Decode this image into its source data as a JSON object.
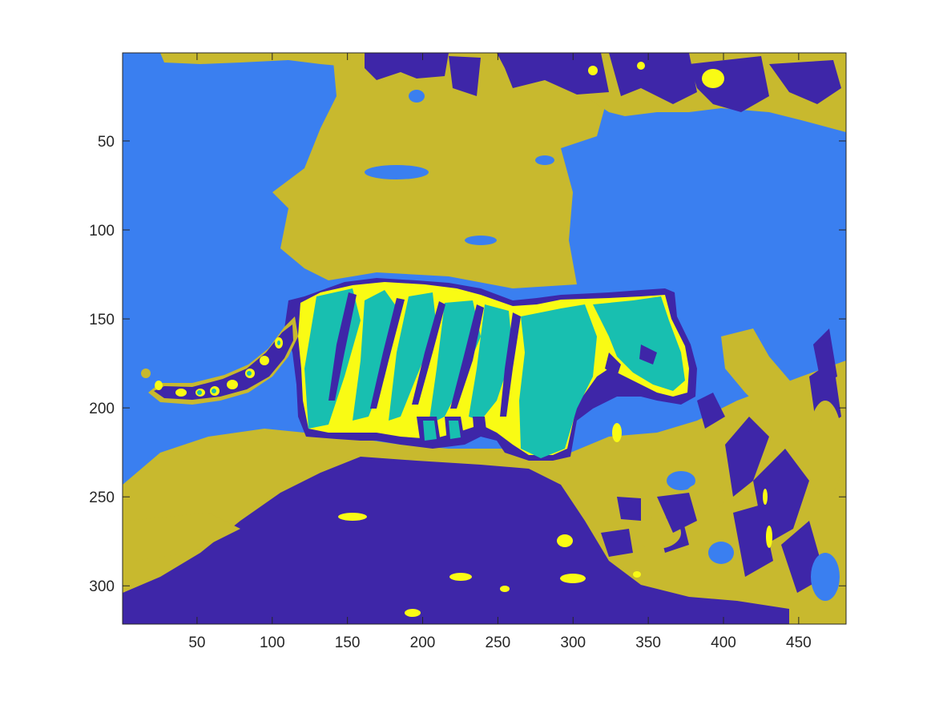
{
  "chart_data": {
    "type": "heatmap",
    "title": "",
    "xlabel": "",
    "ylabel": "",
    "xlim": [
      0.5,
      481.5
    ],
    "ylim": [
      0.5,
      321.5
    ],
    "y_reversed": true,
    "grid": false,
    "x_ticks": [
      50,
      100,
      150,
      200,
      250,
      300,
      350,
      400,
      450
    ],
    "y_ticks": [
      50,
      100,
      150,
      200,
      250,
      300
    ],
    "x_tick_labels": [
      "50",
      "100",
      "150",
      "200",
      "250",
      "300",
      "350",
      "400",
      "450"
    ],
    "y_tick_labels": [
      "50",
      "100",
      "150",
      "200",
      "250",
      "300"
    ],
    "colormap": [
      "#3e26a8",
      "#3a7ff0",
      "#18bfb0",
      "#c8b92e",
      "#f9fb14"
    ],
    "class_count": 5,
    "content": "segmentation map of a tiger walking across a scene"
  }
}
